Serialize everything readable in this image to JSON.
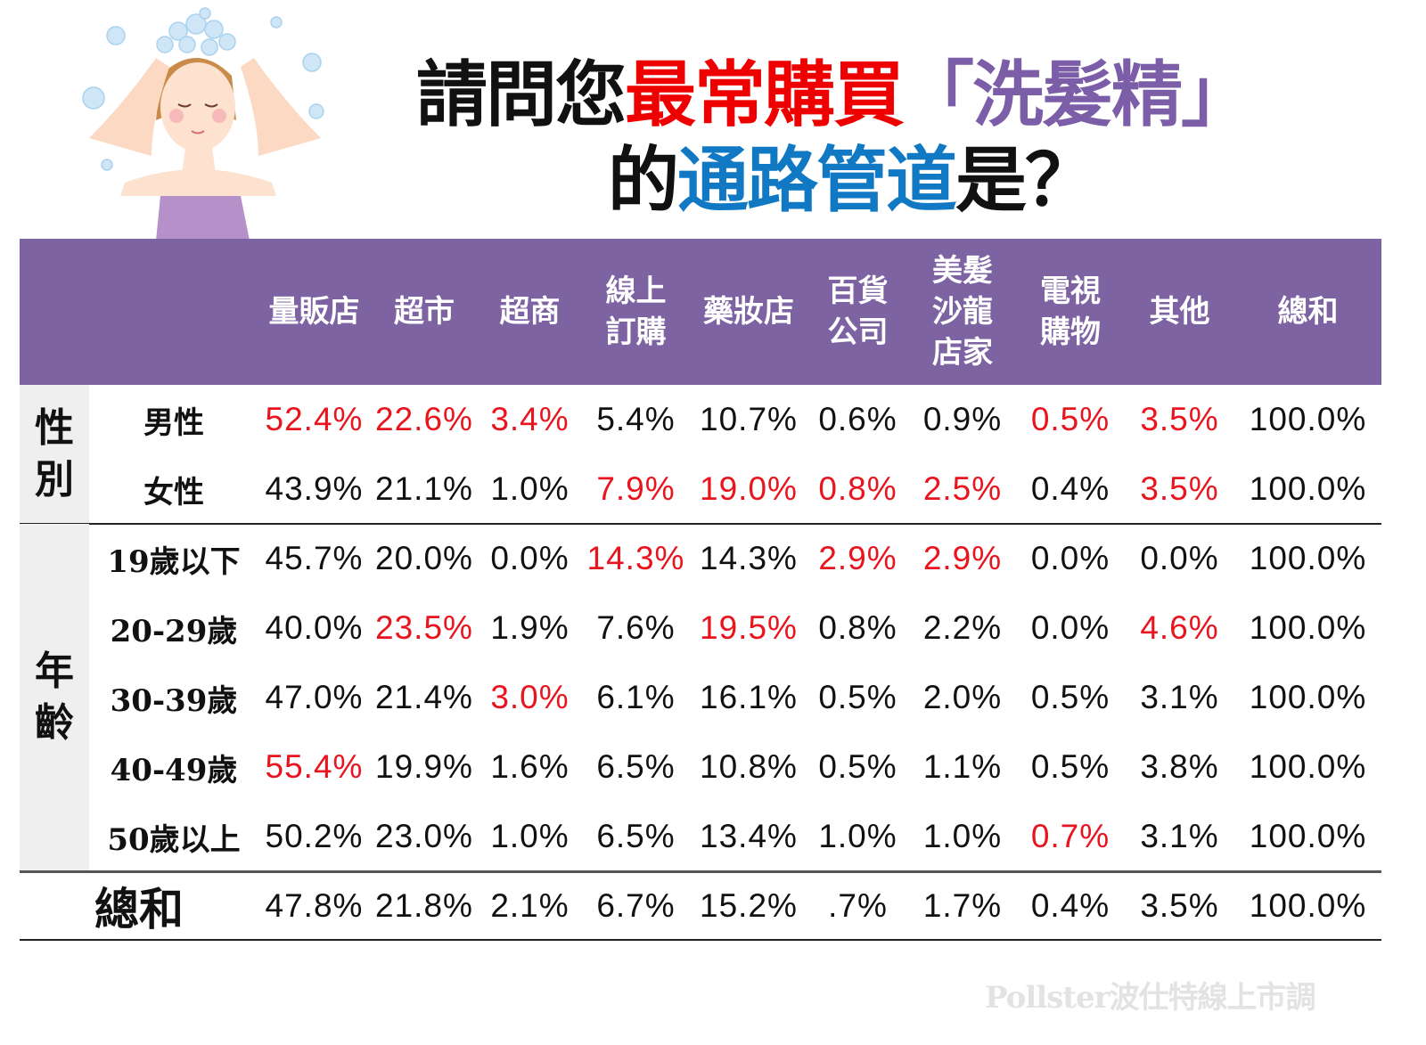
{
  "title": {
    "line1": [
      {
        "text": "請問您",
        "color": "black"
      },
      {
        "text": "最常購買",
        "color": "red"
      },
      {
        "text": "「洗髮精」",
        "color": "purple"
      }
    ],
    "line2": [
      {
        "text": "的",
        "color": "black"
      },
      {
        "text": "通路管道",
        "color": "blue"
      },
      {
        "text": "是？",
        "color": "black"
      }
    ]
  },
  "colors": {
    "header_bg": "#7e63a3",
    "highlight": "#e8141e",
    "title_red": "#ee0000",
    "title_purple": "#7b5ea7",
    "title_blue": "#1178c4",
    "group_bg": "#efefef"
  },
  "illustration": "woman-washing-hair-with-bubbles",
  "watermark": "Pollster波仕特線上市調",
  "chart_data": {
    "type": "table",
    "columns": [
      "量販店",
      "超市",
      "超商",
      "線上\n訂購",
      "藥妝店",
      "百貨\n公司",
      "美髮\n沙龍\n店家",
      "電視\n購物",
      "其他",
      "總和"
    ],
    "groups": [
      {
        "label": "性別",
        "rows": [
          {
            "label": "男性",
            "values": [
              "52.4%",
              "22.6%",
              "3.4%",
              "5.4%",
              "10.7%",
              "0.6%",
              "0.9%",
              "0.5%",
              "3.5%",
              "100.0%"
            ],
            "highlight": [
              true,
              true,
              true,
              false,
              false,
              false,
              false,
              true,
              true,
              false
            ]
          },
          {
            "label": "女性",
            "values": [
              "43.9%",
              "21.1%",
              "1.0%",
              "7.9%",
              "19.0%",
              "0.8%",
              "2.5%",
              "0.4%",
              "3.5%",
              "100.0%"
            ],
            "highlight": [
              false,
              false,
              false,
              true,
              true,
              true,
              true,
              false,
              true,
              false
            ]
          }
        ]
      },
      {
        "label": "年齡",
        "rows": [
          {
            "label": "19歲以下",
            "values": [
              "45.7%",
              "20.0%",
              "0.0%",
              "14.3%",
              "14.3%",
              "2.9%",
              "2.9%",
              "0.0%",
              "0.0%",
              "100.0%"
            ],
            "highlight": [
              false,
              false,
              false,
              true,
              false,
              true,
              true,
              false,
              false,
              false
            ]
          },
          {
            "label": "20-29歲",
            "values": [
              "40.0%",
              "23.5%",
              "1.9%",
              "7.6%",
              "19.5%",
              "0.8%",
              "2.2%",
              "0.0%",
              "4.6%",
              "100.0%"
            ],
            "highlight": [
              false,
              true,
              false,
              false,
              true,
              false,
              false,
              false,
              true,
              false
            ]
          },
          {
            "label": "30-39歲",
            "values": [
              "47.0%",
              "21.4%",
              "3.0%",
              "6.1%",
              "16.1%",
              "0.5%",
              "2.0%",
              "0.5%",
              "3.1%",
              "100.0%"
            ],
            "highlight": [
              false,
              false,
              true,
              false,
              false,
              false,
              false,
              false,
              false,
              false
            ]
          },
          {
            "label": "40-49歲",
            "values": [
              "55.4%",
              "19.9%",
              "1.6%",
              "6.5%",
              "10.8%",
              "0.5%",
              "1.1%",
              "0.5%",
              "3.8%",
              "100.0%"
            ],
            "highlight": [
              true,
              false,
              false,
              false,
              false,
              false,
              false,
              false,
              false,
              false
            ]
          },
          {
            "label": "50歲以上",
            "values": [
              "50.2%",
              "23.0%",
              "1.0%",
              "6.5%",
              "13.4%",
              "1.0%",
              "1.0%",
              "0.7%",
              "3.1%",
              "100.0%"
            ],
            "highlight": [
              false,
              false,
              false,
              false,
              false,
              false,
              false,
              true,
              false,
              false
            ]
          }
        ]
      }
    ],
    "total": {
      "label": "總和",
      "values": [
        "47.8%",
        "21.8%",
        "2.1%",
        "6.7%",
        "15.2%",
        ".7%",
        "1.7%",
        "0.4%",
        "3.5%",
        "100.0%"
      ]
    }
  }
}
